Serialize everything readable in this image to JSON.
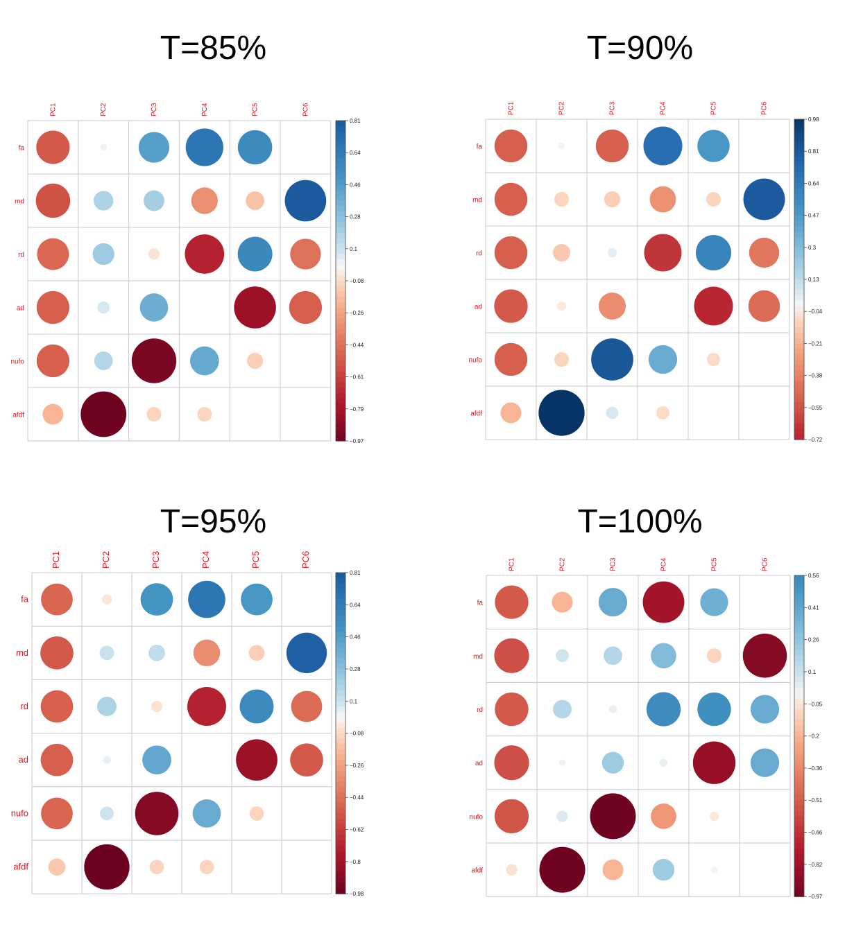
{
  "chart_data": [
    {
      "type": "heatmap",
      "title": "T=85%",
      "columns": [
        "PC1",
        "PC2",
        "PC3",
        "PC4",
        "PC5",
        "PC6"
      ],
      "rows": [
        "fa",
        "md",
        "rd",
        "ad",
        "nufo",
        "afdf"
      ],
      "values": [
        [
          -0.52,
          0.02,
          0.44,
          0.66,
          0.55,
          0.0
        ],
        [
          -0.55,
          0.18,
          0.2,
          -0.33,
          -0.16,
          0.8
        ],
        [
          -0.47,
          0.22,
          -0.06,
          -0.72,
          0.56,
          -0.44
        ],
        [
          -0.5,
          0.07,
          0.37,
          0.0,
          -0.82,
          -0.5
        ],
        [
          -0.5,
          0.16,
          -0.93,
          0.39,
          -0.12,
          0.0
        ],
        [
          -0.2,
          -0.97,
          -0.1,
          -0.1,
          0.0,
          0.0
        ]
      ],
      "colorbar_ticks": [
        "0.81",
        "0.64",
        "0.46",
        "0.28",
        "0.1",
        "−0.08",
        "−0.26",
        "−0.44",
        "−0.61",
        "−0.79",
        "−0.97"
      ],
      "colorbar_range": [
        -0.97,
        0.81
      ]
    },
    {
      "type": "heatmap",
      "title": "T=90%",
      "columns": [
        "PC1",
        "PC2",
        "PC3",
        "PC4",
        "PC5",
        "PC6"
      ],
      "rows": [
        "fa",
        "md",
        "rd",
        "ad",
        "nufo",
        "afdf"
      ],
      "values": [
        [
          -0.5,
          0.02,
          -0.5,
          0.7,
          0.48,
          0.0
        ],
        [
          -0.5,
          -0.1,
          -0.12,
          -0.32,
          -0.1,
          0.8
        ],
        [
          -0.5,
          -0.14,
          0.04,
          -0.65,
          0.58,
          -0.42
        ],
        [
          -0.52,
          -0.04,
          -0.34,
          0.0,
          -0.7,
          -0.46
        ],
        [
          -0.5,
          -0.1,
          0.82,
          0.38,
          -0.08,
          0.0
        ],
        [
          -0.2,
          0.98,
          0.07,
          -0.08,
          0.0,
          0.0
        ]
      ],
      "colorbar_ticks": [
        "0.98",
        "0.81",
        "0.64",
        "0.47",
        "0.3",
        "0.13",
        "−0.04",
        "−0.21",
        "−0.38",
        "−0.55",
        "−0.72"
      ],
      "colorbar_range": [
        -0.72,
        0.98
      ]
    },
    {
      "type": "heatmap",
      "title": "T=95%",
      "columns": [
        "PC1",
        "PC2",
        "PC3",
        "PC4",
        "PC5",
        "PC6"
      ],
      "rows": [
        "fa",
        "md",
        "rd",
        "ad",
        "nufo",
        "afdf"
      ],
      "values": [
        [
          -0.48,
          -0.05,
          0.5,
          0.66,
          0.48,
          0.0
        ],
        [
          -0.52,
          0.1,
          0.13,
          -0.34,
          -0.12,
          0.78
        ],
        [
          -0.5,
          0.18,
          -0.06,
          -0.72,
          0.55,
          -0.46
        ],
        [
          -0.5,
          0.03,
          0.4,
          0.0,
          -0.82,
          -0.52
        ],
        [
          -0.48,
          0.09,
          -0.9,
          0.38,
          -0.1,
          0.0
        ],
        [
          -0.14,
          -0.98,
          -0.1,
          -0.1,
          0.0,
          0.0
        ]
      ],
      "colorbar_ticks": [
        "0.81",
        "0.64",
        "0.46",
        "0.28",
        "0.1",
        "−0.08",
        "−0.26",
        "−0.44",
        "−0.62",
        "−0.8",
        "−0.98"
      ],
      "colorbar_range": [
        -0.98,
        0.81
      ]
    },
    {
      "type": "heatmap",
      "title": "T=100%",
      "columns": [
        "PC1",
        "PC2",
        "PC3",
        "PC4",
        "PC5",
        "PC6"
      ],
      "rows": [
        "fa",
        "md",
        "rd",
        "ad",
        "nufo",
        "afdf"
      ],
      "values": [
        [
          -0.52,
          -0.2,
          0.38,
          -0.8,
          0.36,
          0.0
        ],
        [
          -0.56,
          0.08,
          0.16,
          0.3,
          -0.1,
          -0.9
        ],
        [
          -0.52,
          0.16,
          0.03,
          0.54,
          0.52,
          0.38
        ],
        [
          -0.56,
          0.02,
          0.22,
          0.03,
          -0.84,
          0.38
        ],
        [
          -0.54,
          0.06,
          -0.97,
          -0.3,
          -0.04,
          0.0
        ],
        [
          -0.06,
          -0.97,
          -0.2,
          0.22,
          0.02,
          0.0
        ]
      ],
      "colorbar_ticks": [
        "0.56",
        "0.41",
        "0.26",
        "0.1",
        "−0.05",
        "−0.2",
        "−0.36",
        "−0.51",
        "−0.66",
        "−0.82",
        "−0.97"
      ],
      "colorbar_range": [
        -0.97,
        0.56
      ]
    }
  ]
}
